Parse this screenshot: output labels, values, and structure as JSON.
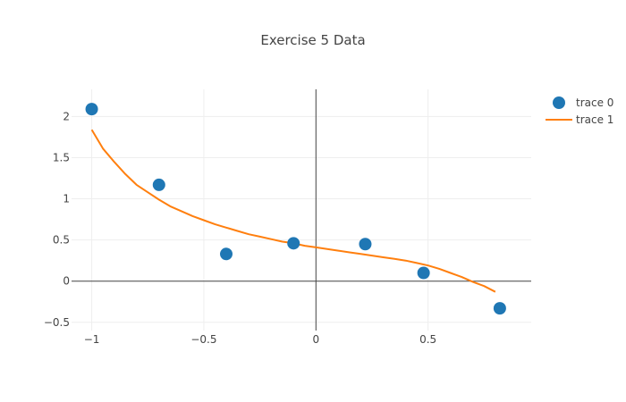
{
  "chart_data": {
    "type": "scatter",
    "title": "Exercise 5 Data",
    "xlabel": "",
    "ylabel": "",
    "xlim": [
      -1.09,
      0.96
    ],
    "ylim": [
      -0.6,
      2.33
    ],
    "x_ticks": [
      -1,
      -0.5,
      0,
      0.5
    ],
    "x_tick_labels": [
      "−1",
      "−0.5",
      "0",
      "0.5"
    ],
    "y_ticks": [
      -0.5,
      0,
      0.5,
      1,
      1.5,
      2
    ],
    "y_tick_labels": [
      "−0.5",
      "0",
      "0.5",
      "1",
      "1.5",
      "2"
    ],
    "grid": true,
    "zero_lines": true,
    "legend_position": "top-right",
    "series": [
      {
        "name": "trace 0",
        "mode": "markers",
        "color": "#1f77b4",
        "x": [
          -1.0,
          -0.7,
          -0.4,
          -0.1,
          0.22,
          0.48,
          0.82
        ],
        "y": [
          2.09,
          1.17,
          0.33,
          0.46,
          0.45,
          0.1,
          -0.33
        ]
      },
      {
        "name": "trace 1",
        "mode": "lines",
        "color": "#ff7f0e",
        "x": [
          -1.0,
          -0.95,
          -0.9,
          -0.85,
          -0.8,
          -0.75,
          -0.7,
          -0.65,
          -0.6,
          -0.55,
          -0.5,
          -0.45,
          -0.4,
          -0.35,
          -0.3,
          -0.25,
          -0.2,
          -0.15,
          -0.1,
          -0.05,
          0.0,
          0.05,
          0.1,
          0.15,
          0.2,
          0.25,
          0.3,
          0.35,
          0.4,
          0.45,
          0.5,
          0.55,
          0.6,
          0.65,
          0.7,
          0.75,
          0.8
        ],
        "y": [
          1.84,
          1.61,
          1.45,
          1.3,
          1.17,
          1.08,
          0.99,
          0.91,
          0.85,
          0.79,
          0.74,
          0.69,
          0.65,
          0.61,
          0.57,
          0.54,
          0.51,
          0.48,
          0.46,
          0.43,
          0.41,
          0.39,
          0.37,
          0.35,
          0.33,
          0.31,
          0.29,
          0.27,
          0.25,
          0.22,
          0.19,
          0.15,
          0.1,
          0.05,
          -0.01,
          -0.06,
          -0.13
        ]
      }
    ]
  }
}
